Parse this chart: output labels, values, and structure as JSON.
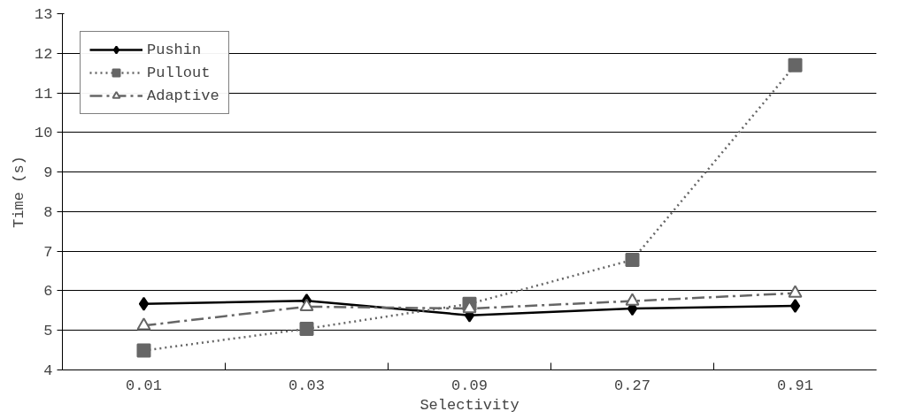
{
  "chart_data": {
    "type": "line",
    "xlabel": "Selectivity",
    "ylabel": "Time (s)",
    "categories": [
      "0.01",
      "0.03",
      "0.09",
      "0.27",
      "0.91"
    ],
    "ylim": [
      4,
      13
    ],
    "yticks": [
      4,
      5,
      6,
      7,
      8,
      9,
      10,
      11,
      12,
      13
    ],
    "grid": "y",
    "legend": "top left",
    "series": [
      {
        "name": "Pushin",
        "color": "#000000",
        "values": [
          5.67,
          5.75,
          5.38,
          5.55,
          5.62
        ],
        "marker": "diamond",
        "line_style": "solid"
      },
      {
        "name": "Pullout",
        "color": "#666666",
        "values": [
          4.49,
          5.04,
          5.67,
          6.78,
          11.7
        ],
        "marker": "square",
        "line_style": "dotted"
      },
      {
        "name": "Adaptive",
        "color": "#666666",
        "values": [
          5.12,
          5.6,
          5.55,
          5.74,
          5.94
        ],
        "marker": "triangle",
        "line_style": "dashdot"
      }
    ]
  }
}
